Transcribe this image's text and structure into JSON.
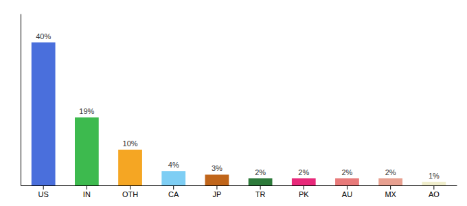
{
  "chart_data": {
    "type": "bar",
    "categories": [
      "US",
      "IN",
      "OTH",
      "CA",
      "JP",
      "TR",
      "PK",
      "AU",
      "MX",
      "AO"
    ],
    "values": [
      40,
      19,
      10,
      4,
      3,
      2,
      2,
      2,
      2,
      1
    ],
    "value_labels": [
      "40%",
      "19%",
      "10%",
      "4%",
      "3%",
      "2%",
      "2%",
      "2%",
      "2%",
      "1%"
    ],
    "colors": [
      "#4a6fdc",
      "#3dba4e",
      "#f5a623",
      "#7ecef4",
      "#c0651a",
      "#2d7a3a",
      "#e8297a",
      "#e87a7a",
      "#e8a090",
      "#f0eecc"
    ],
    "ylim": [
      0,
      48
    ],
    "grid": false,
    "data_labels": true,
    "tick_labels": "x"
  }
}
